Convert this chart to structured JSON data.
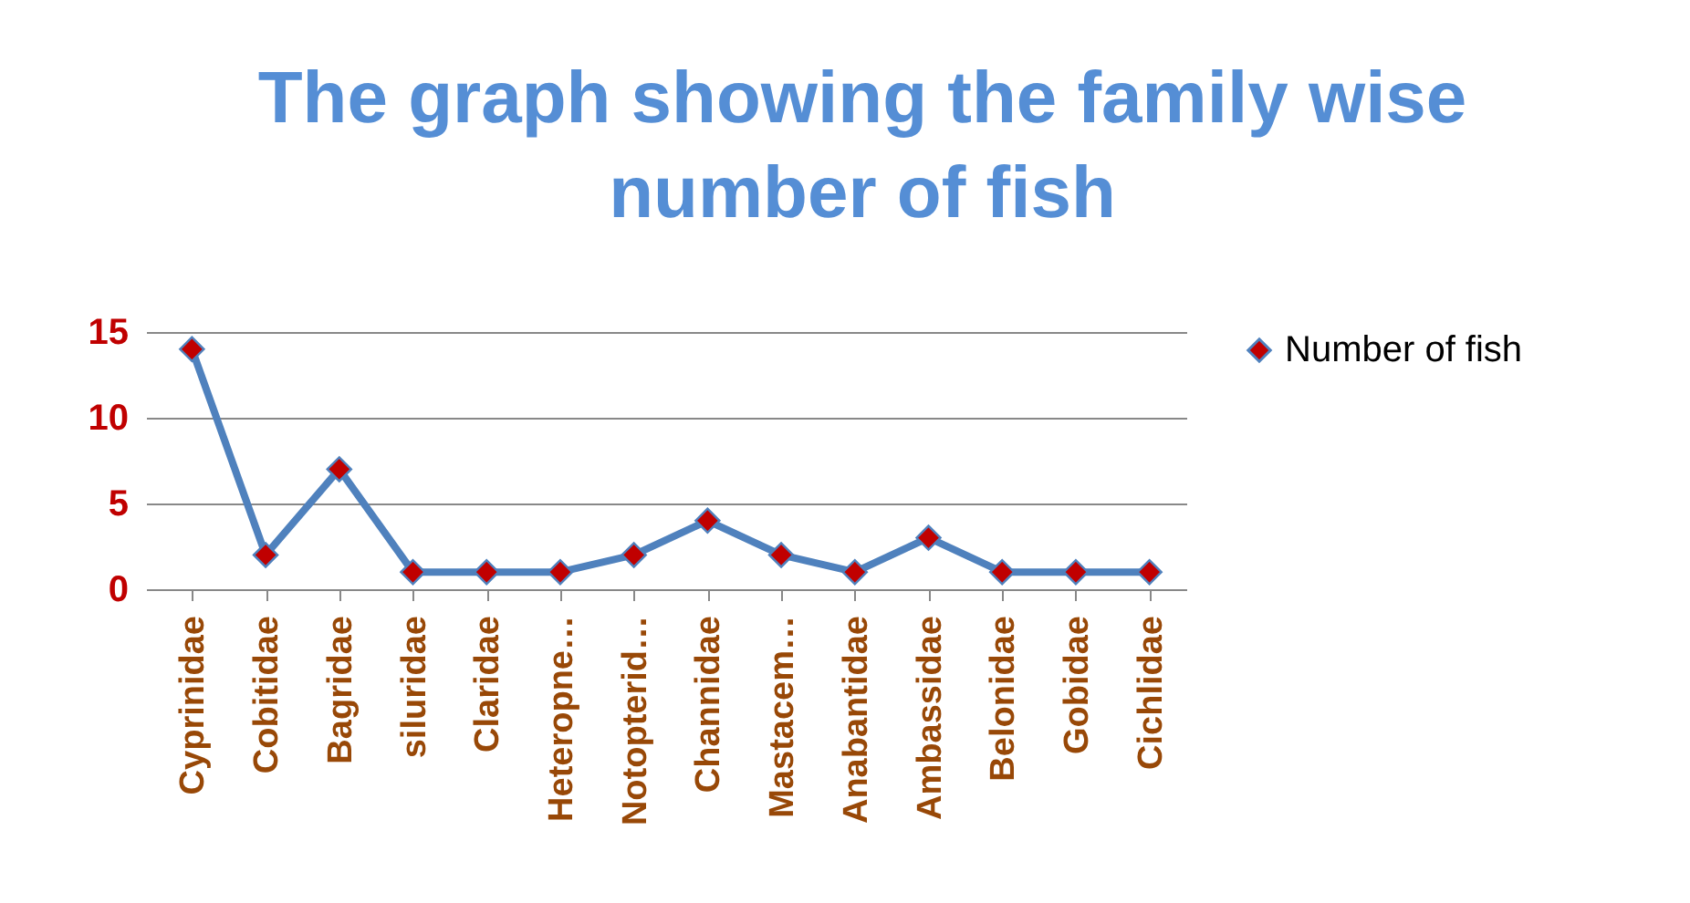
{
  "chart_data": {
    "type": "line",
    "title": "The graph showing the family wise number of fish",
    "categories": [
      "Cyprinidae",
      "Cobitidae",
      "Bagridae",
      "siluridae",
      "Claridae",
      "Heteropne…",
      "Notopterid…",
      "Channidae",
      "Mastacem…",
      "Anabantidae",
      "Ambassidae",
      "Belonidae",
      "Gobidae",
      "Cichlidae"
    ],
    "series": [
      {
        "name": "Number of fish",
        "color": "#4f81bd",
        "values": [
          14,
          2,
          7,
          1,
          1,
          1,
          2,
          4,
          2,
          1,
          3,
          1,
          1,
          1
        ]
      }
    ],
    "ylim": [
      0,
      15
    ],
    "yticks": [
      0,
      5,
      10,
      15
    ],
    "grid": "y",
    "legend": "right",
    "marker": "diamond",
    "line_style": "solid"
  }
}
